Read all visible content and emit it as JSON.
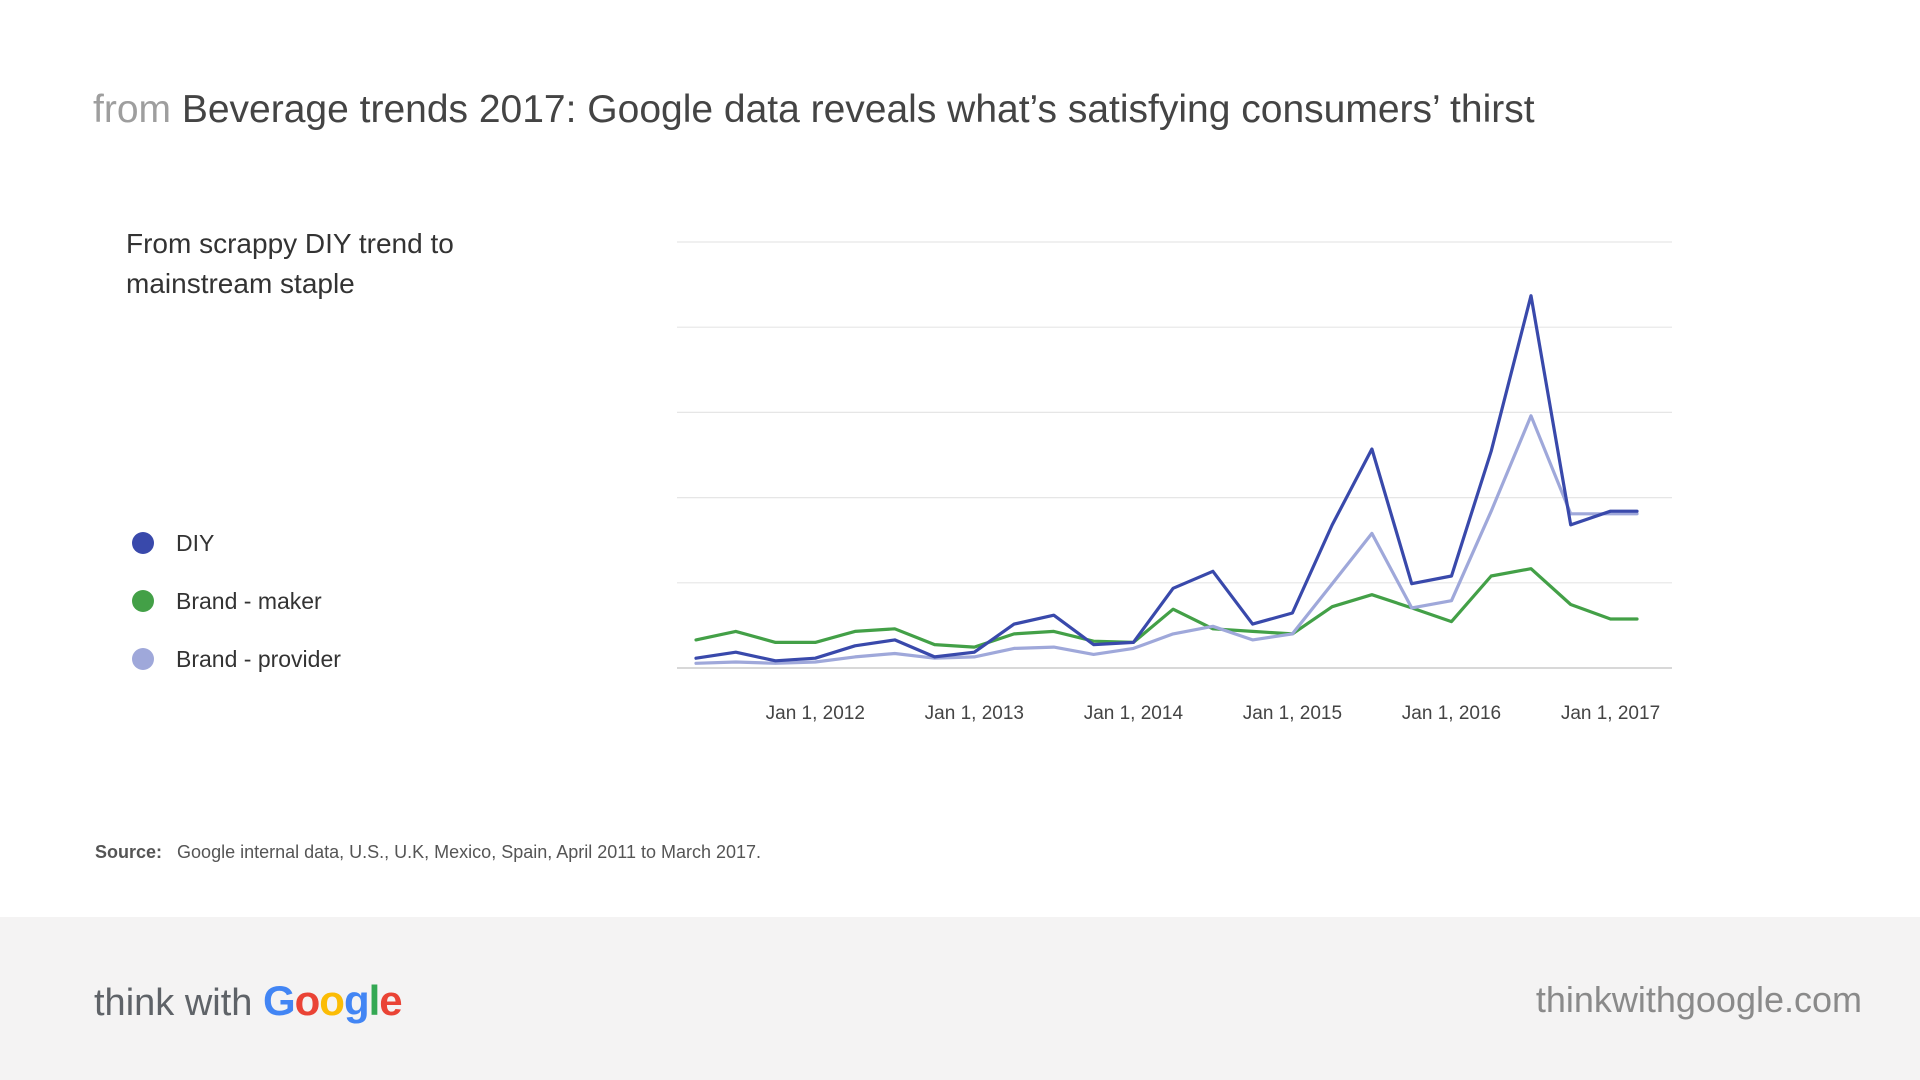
{
  "header": {
    "prefix": "from",
    "title": "Beverage trends 2017: Google data reveals what’s satisfying consumers’ thirst"
  },
  "chart_data": {
    "type": "line",
    "title": "From scrappy DIY trend to mainstream staple",
    "xlabel": "",
    "ylabel": "",
    "x_ticks": [
      "Jan 1, 2012",
      "Jan 1, 2013",
      "Jan 1, 2014",
      "Jan 1, 2015",
      "Jan 1, 2016",
      "Jan 1, 2017"
    ],
    "x": [
      "2011-04",
      "2011-07",
      "2011-10",
      "2012-01",
      "2012-04",
      "2012-07",
      "2012-10",
      "2013-01",
      "2013-04",
      "2013-07",
      "2013-10",
      "2014-01",
      "2014-04",
      "2014-07",
      "2014-10",
      "2015-01",
      "2015-04",
      "2015-07",
      "2015-10",
      "2016-01",
      "2016-04",
      "2016-07",
      "2016-10",
      "2017-01",
      "2017-03"
    ],
    "ylim": [
      0,
      100
    ],
    "grid": true,
    "legend_position": "left",
    "series": [
      {
        "name": "DIY",
        "color": "#3949ab",
        "values": [
          2.3,
          3.7,
          1.7,
          2.3,
          5.2,
          6.6,
          2.6,
          3.7,
          10.3,
          12.4,
          5.5,
          6.0,
          18.7,
          22.7,
          10.3,
          12.9,
          33.6,
          51.4,
          19.8,
          21.6,
          50.9,
          87.4,
          33.6,
          36.8,
          36.8
        ],
        "labels": []
      },
      {
        "name": "Brand - maker",
        "color": "#43a047",
        "values": [
          6.6,
          8.6,
          6.0,
          6.0,
          8.6,
          9.2,
          5.5,
          4.9,
          8.0,
          8.6,
          6.3,
          6.0,
          13.8,
          9.2,
          8.6,
          8.0,
          14.4,
          17.2,
          14.1,
          10.9,
          21.6,
          23.3,
          14.9,
          11.5,
          11.5
        ],
        "labels": []
      },
      {
        "name": "Brand - provider",
        "color": "#9fa8da",
        "values": [
          1.1,
          1.4,
          1.1,
          1.4,
          2.6,
          3.4,
          2.3,
          2.6,
          4.6,
          4.9,
          3.2,
          4.6,
          8.0,
          9.8,
          6.6,
          8.0,
          19.8,
          31.6,
          14.1,
          15.8,
          36.8,
          59.2,
          36.2,
          36.2,
          36.2
        ],
        "labels": []
      }
    ]
  },
  "source": {
    "label": "Source:",
    "text": "Google internal data, U.S., U.K, Mexico, Spain, April 2011 to March 2017."
  },
  "footer": {
    "brand_prefix": "think with",
    "brand_name": "Google",
    "brand_colors": [
      "#4285f4",
      "#ea4335",
      "#fbbc05",
      "#4285f4",
      "#34a853",
      "#ea4335"
    ],
    "url": "thinkwithgoogle.com"
  }
}
